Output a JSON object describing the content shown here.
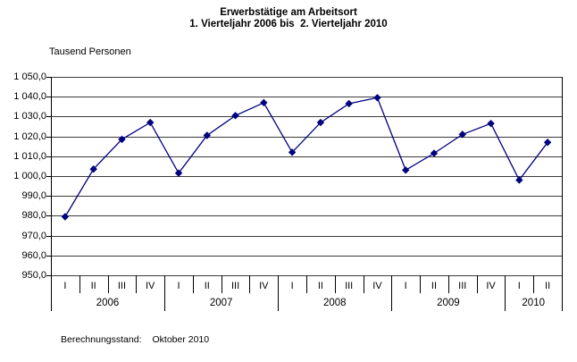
{
  "title": {
    "line1": "Erwerbstätige am Arbeitsort",
    "line2": "1. Vierteljahr 2006 bis  2. Vierteljahr 2010"
  },
  "unit_label": "Tausend Personen",
  "footnote": {
    "label": "Berechnungsstand:",
    "value": "Oktober 2010"
  },
  "chart_data": {
    "type": "line",
    "title": "Erwerbstätige am Arbeitsort",
    "subtitle": "1. Vierteljahr 2006 bis 2. Vierteljahr 2010",
    "ylabel": "Tausend Personen",
    "ylim": [
      950,
      1050
    ],
    "ytick_step": 10,
    "ytick_labels": [
      "1 050,0",
      "1 040,0",
      "1 030,0",
      "1 020,0",
      "1 010,0",
      "1 000,0",
      "990,0",
      "980,0",
      "970,0",
      "960,0",
      "950,0"
    ],
    "grid": true,
    "legend": "none",
    "line_color": "#000080",
    "marker": "diamond",
    "series_name": "Erwerbstätige am Arbeitsort (Tausend Personen)",
    "groups": [
      {
        "year": "2006",
        "quarters": [
          "I",
          "II",
          "III",
          "IV"
        ],
        "values": [
          979.5,
          1003.5,
          1018.5,
          1027.0
        ]
      },
      {
        "year": "2007",
        "quarters": [
          "I",
          "II",
          "III",
          "IV"
        ],
        "values": [
          1001.5,
          1020.5,
          1030.5,
          1037.0
        ]
      },
      {
        "year": "2008",
        "quarters": [
          "I",
          "II",
          "III",
          "IV"
        ],
        "values": [
          1012.0,
          1027.0,
          1036.5,
          1039.5
        ]
      },
      {
        "year": "2009",
        "quarters": [
          "I",
          "II",
          "III",
          "IV"
        ],
        "values": [
          1003.0,
          1011.5,
          1021.0,
          1026.5
        ]
      },
      {
        "year": "2010",
        "quarters": [
          "I",
          "II"
        ],
        "values": [
          998.0,
          1017.0
        ]
      }
    ]
  }
}
